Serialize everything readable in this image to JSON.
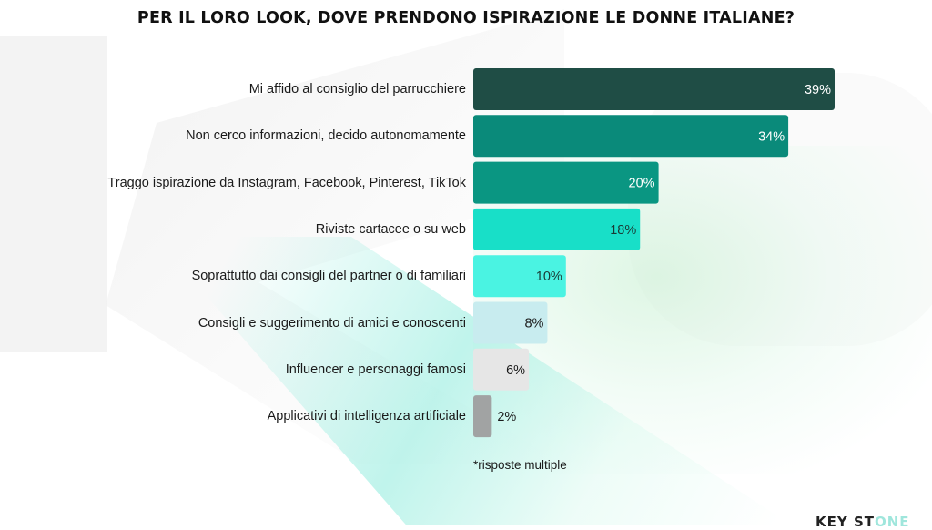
{
  "chart_data": {
    "type": "bar",
    "orientation": "horizontal",
    "title": "PER IL LORO LOOK, DOVE PRENDONO ISPIRAZIONE LE DONNE ITALIANE?",
    "categories": [
      "Mi affido al consiglio del parrucchiere",
      "Non cerco informazioni, decido autonomamente",
      "Traggo ispirazione da Instagram, Facebook, Pinterest, TikTok",
      "Riviste cartacee o su web",
      "Soprattutto dai consigli del partner o di familiari",
      "Consigli e suggerimento di amici e conoscenti",
      "Influencer e personaggi famosi",
      "Applicativi di intelligenza artificiale"
    ],
    "values": [
      39,
      34,
      20,
      18,
      10,
      8,
      6,
      2
    ],
    "value_labels": [
      "39%",
      "34%",
      "20%",
      "18%",
      "10%",
      "8%",
      "6%",
      "2%"
    ],
    "bar_colors": [
      "#1f4d45",
      "#0a8a7a",
      "#0a9682",
      "#18dfc8",
      "#4af3e2",
      "#c8ecef",
      "#e6e6e6",
      "#a1a3a3"
    ],
    "label_colors": [
      "#ffffff",
      "#ffffff",
      "#ffffff",
      "#1a3a35",
      "#1a3a35",
      "#1a1a1a",
      "#1a1a1a",
      "#1a1a1a"
    ],
    "label_inside": [
      true,
      true,
      true,
      true,
      true,
      true,
      true,
      false
    ],
    "xlabel": "",
    "ylabel": "",
    "xlim": [
      0,
      39
    ],
    "grid": false,
    "legend": "none",
    "footnote": "*risposte multiple"
  },
  "logo": {
    "text_main": "KEY ST",
    "text_accent": "ONE"
  }
}
